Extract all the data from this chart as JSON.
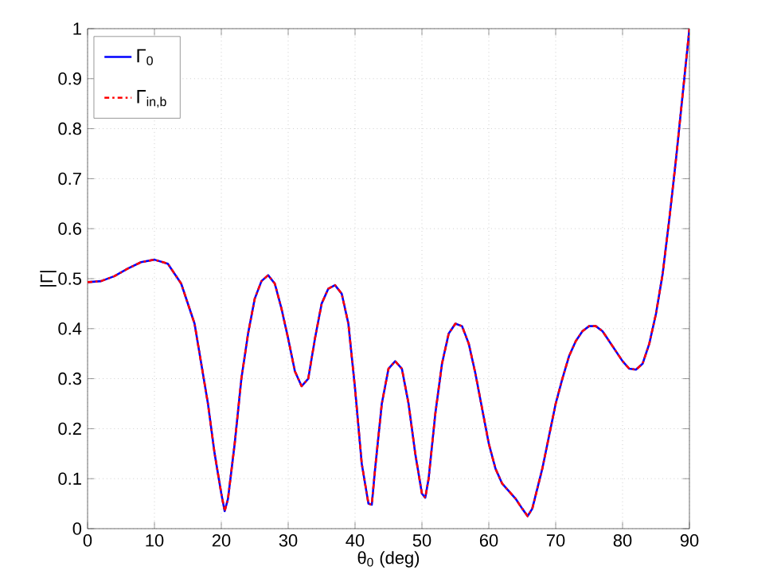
{
  "chart_data": {
    "type": "line",
    "xlabel": "θ$_{0}$ (deg)",
    "ylabel": "|Γ|",
    "x": [
      0,
      2,
      4,
      6,
      8,
      10,
      12,
      14,
      16,
      18,
      19,
      20,
      20.5,
      21,
      22,
      23,
      24,
      25,
      26,
      27,
      28,
      29,
      30,
      31,
      32,
      33,
      34,
      35,
      36,
      37,
      38,
      39,
      40,
      41,
      42,
      42.5,
      43,
      44,
      45,
      46,
      47,
      48,
      49,
      50,
      50.5,
      51,
      52,
      53,
      54,
      55,
      56,
      57,
      58,
      59,
      60,
      61,
      62,
      63,
      64,
      65,
      65.8,
      66.5,
      68,
      70,
      71,
      72,
      73,
      74,
      75,
      76,
      77,
      78,
      79,
      80,
      81,
      82,
      83,
      84,
      85,
      86,
      87,
      88,
      89,
      90
    ],
    "series": [
      {
        "name": "Γ$_{0}$",
        "color": "#0000ff",
        "line_style": "solid",
        "values": [
          0.493,
          0.495,
          0.505,
          0.52,
          0.533,
          0.538,
          0.53,
          0.49,
          0.41,
          0.25,
          0.15,
          0.07,
          0.035,
          0.06,
          0.17,
          0.3,
          0.39,
          0.46,
          0.495,
          0.507,
          0.49,
          0.44,
          0.38,
          0.315,
          0.285,
          0.3,
          0.38,
          0.45,
          0.48,
          0.487,
          0.47,
          0.41,
          0.28,
          0.13,
          0.05,
          0.048,
          0.12,
          0.25,
          0.32,
          0.335,
          0.32,
          0.25,
          0.15,
          0.07,
          0.062,
          0.1,
          0.23,
          0.33,
          0.39,
          0.41,
          0.405,
          0.37,
          0.31,
          0.24,
          0.17,
          0.12,
          0.09,
          0.075,
          0.06,
          0.04,
          0.025,
          0.04,
          0.12,
          0.25,
          0.3,
          0.345,
          0.375,
          0.395,
          0.405,
          0.405,
          0.395,
          0.375,
          0.355,
          0.335,
          0.32,
          0.318,
          0.33,
          0.37,
          0.43,
          0.51,
          0.62,
          0.74,
          0.87,
          1.0
        ]
      },
      {
        "name": "Γ$_{in,b}$",
        "color": "#ff0000",
        "line_style": "dashed",
        "values": [
          0.493,
          0.495,
          0.505,
          0.52,
          0.533,
          0.538,
          0.53,
          0.49,
          0.41,
          0.25,
          0.15,
          0.07,
          0.035,
          0.06,
          0.17,
          0.3,
          0.39,
          0.46,
          0.495,
          0.507,
          0.49,
          0.44,
          0.38,
          0.315,
          0.285,
          0.3,
          0.38,
          0.45,
          0.48,
          0.487,
          0.47,
          0.41,
          0.28,
          0.13,
          0.05,
          0.048,
          0.12,
          0.25,
          0.32,
          0.335,
          0.32,
          0.25,
          0.15,
          0.07,
          0.062,
          0.1,
          0.23,
          0.33,
          0.39,
          0.41,
          0.405,
          0.37,
          0.31,
          0.24,
          0.17,
          0.12,
          0.09,
          0.075,
          0.06,
          0.04,
          0.025,
          0.04,
          0.12,
          0.25,
          0.3,
          0.345,
          0.375,
          0.395,
          0.405,
          0.405,
          0.395,
          0.375,
          0.355,
          0.335,
          0.32,
          0.318,
          0.33,
          0.37,
          0.43,
          0.51,
          0.62,
          0.74,
          0.87,
          1.0
        ]
      }
    ],
    "xlim": [
      0,
      90
    ],
    "xticks": [
      0,
      10,
      20,
      30,
      40,
      50,
      60,
      70,
      80,
      90
    ],
    "ylim": [
      0,
      1
    ],
    "yticks": [
      0,
      0.1,
      0.2,
      0.3,
      0.4,
      0.5,
      0.6,
      0.7,
      0.8,
      0.9,
      1
    ],
    "grid": true,
    "legend": "top left"
  }
}
